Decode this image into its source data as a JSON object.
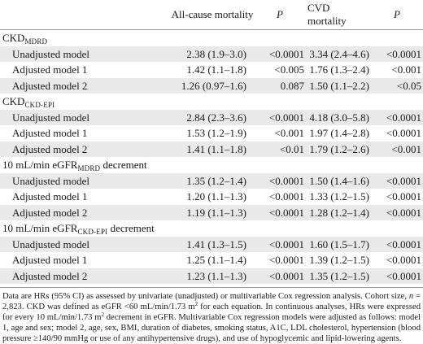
{
  "table": {
    "headers": {
      "blank": "",
      "all_cause": "All-cause mortality",
      "p1": "P",
      "cvd": "CVD mortality",
      "p2": "P"
    },
    "sections": [
      {
        "title_main": "CKD",
        "title_sub": "MDRD",
        "title_suffix": "",
        "rows": [
          {
            "label": "Unadjusted model",
            "all": "2.38 (1.9–3.0)",
            "p1": "<0.0001",
            "cvd": "3.34 (2.4–4.6)",
            "p2": "<0.0001"
          },
          {
            "label": "Adjusted model 1",
            "all": "1.42 (1.1–1.8)",
            "p1": "<0.005",
            "cvd": "1.76 (1.3–2.4)",
            "p2": "<0.001"
          },
          {
            "label": "Adjusted model 2",
            "all": "1.26 (0.97–1.6)",
            "p1": "0.087",
            "cvd": "1.50 (1.1–2.2)",
            "p2": "<0.05"
          }
        ]
      },
      {
        "title_main": "CKD",
        "title_sub": "CKD-EPI",
        "title_suffix": "",
        "rows": [
          {
            "label": "Unadjusted model",
            "all": "2.84 (2.3–3.6)",
            "p1": "<0.0001",
            "cvd": "4.18 (3.0–5.8)",
            "p2": "<0.0001"
          },
          {
            "label": "Adjusted model 1",
            "all": "1.53 (1.2–1.9)",
            "p1": "<0.001",
            "cvd": "1.97 (1.4–2.8)",
            "p2": "<0.0001"
          },
          {
            "label": "Adjusted model 2",
            "all": "1.41 (1.1–1.8)",
            "p1": "<0.01",
            "cvd": "1.79 (1.2–2.6)",
            "p2": "<0.001"
          }
        ]
      },
      {
        "title_main": "10 mL/min eGFR",
        "title_sub": "MDRD",
        "title_suffix": " decrement",
        "rows": [
          {
            "label": "Unadjusted model",
            "all": "1.35 (1.2–1.4)",
            "p1": "<0.0001",
            "cvd": "1.50 (1.4–1.6)",
            "p2": "<0.0001"
          },
          {
            "label": "Adjusted model 1",
            "all": "1.20 (1.1–1.3)",
            "p1": "<0.0001",
            "cvd": "1.33 (1.2–1.5)",
            "p2": "<0.0001"
          },
          {
            "label": "Adjusted model 2",
            "all": "1.19 (1.1–1.3)",
            "p1": "<0.0001",
            "cvd": "1.28 (1.2–1.4)",
            "p2": "<0.0001"
          }
        ]
      },
      {
        "title_main": "10 mL/min eGFR",
        "title_sub": "CKD-EPI",
        "title_suffix": " decrement",
        "rows": [
          {
            "label": "Unadjusted model",
            "all": "1.41 (1.3–1.5)",
            "p1": "<0.0001",
            "cvd": "1.60 (1.5–1.7)",
            "p2": "<0.0001"
          },
          {
            "label": "Adjusted model 1",
            "all": "1.25 (1.1–1.4)",
            "p1": "<0.0001",
            "cvd": "1.39 (1.2–1.5)",
            "p2": "<0.0001"
          },
          {
            "label": "Adjusted model 2",
            "all": "1.23 (1.1–1.3)",
            "p1": "<0.0001",
            "cvd": "1.35 (1.2–1.5)",
            "p2": "<0.0001"
          }
        ]
      }
    ]
  },
  "footnote": {
    "part1": "Data are HRs (95% CI) as assessed by univariate (unadjusted) or multivariable Cox regression analysis. Cohort size, ",
    "n_italic": "n",
    "part2": " = 2,823. CKD was defined as eGFR <60 mL/min/1.73 m",
    "sup1": "2",
    "part3": " for each equation. In continuous analyses, HRs were expressed for every 10 mL/min/1.73 m",
    "sup2": "2",
    "part4": " decrement in eGFR. Multivariable Cox regression models were adjusted as follows: model 1, age and sex; model 2, age, sex, BMI, duration of diabetes, smoking status, A1C, LDL cholesterol, hypertension (blood pressure ≥140/90 mmHg or use of any antihypertensive drugs), and use of hypoglycemic and lipid-lowering agents."
  }
}
